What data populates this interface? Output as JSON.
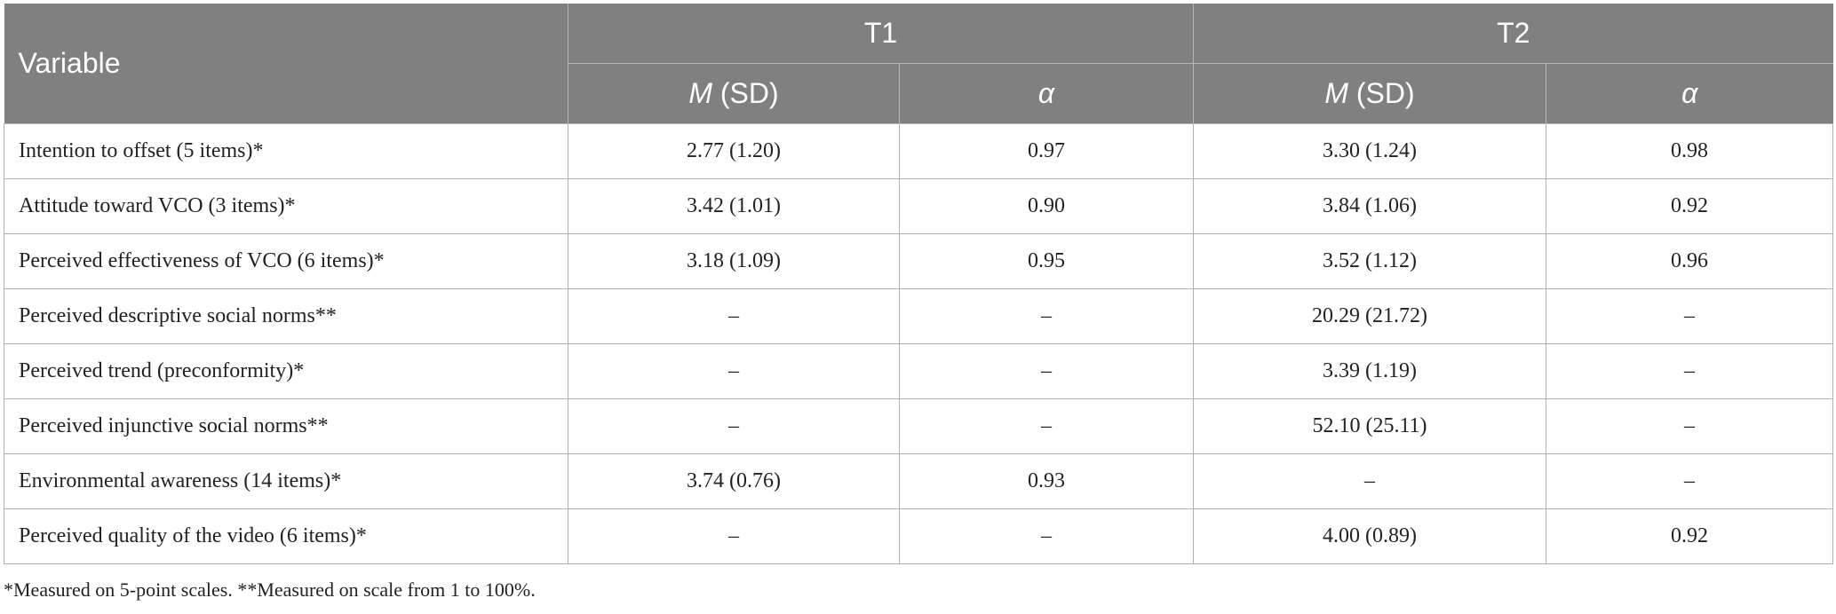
{
  "table": {
    "header": {
      "first": "Variable",
      "groups": [
        "T1",
        "T2"
      ],
      "subheads": [
        [
          "M",
          "(SD)"
        ],
        [
          "α"
        ],
        [
          "M",
          "(SD)"
        ],
        [
          "α"
        ]
      ]
    },
    "rows": [
      [
        "Intention to offset (5 items)*",
        "2.77 (1.20)",
        "0.97",
        "3.30 (1.24)",
        "0.98"
      ],
      [
        "Attitude toward VCO (3 items)*",
        "3.42 (1.01)",
        "0.90",
        "3.84 (1.06)",
        "0.92"
      ],
      [
        "Perceived effectiveness of VCO (6 items)*",
        "3.18 (1.09)",
        "0.95",
        "3.52 (1.12)",
        "0.96"
      ],
      [
        "Perceived descriptive social norms**",
        "–",
        "–",
        "20.29 (21.72)",
        "–"
      ],
      [
        "Perceived trend (preconformity)*",
        "–",
        "–",
        "3.39 (1.19)",
        "–"
      ],
      [
        "Perceived injunctive social norms**",
        "–",
        "–",
        "52.10 (25.11)",
        "–"
      ],
      [
        "Environmental awareness (14 items)*",
        "3.74 (0.76)",
        "0.93",
        "–",
        "–"
      ],
      [
        "Perceived quality of the video (6 items)*",
        "–",
        "–",
        "4.00 (0.89)",
        "0.92"
      ]
    ]
  },
  "footnote": "*Measured on 5-point scales. **Measured on scale from 1 to 100%."
}
